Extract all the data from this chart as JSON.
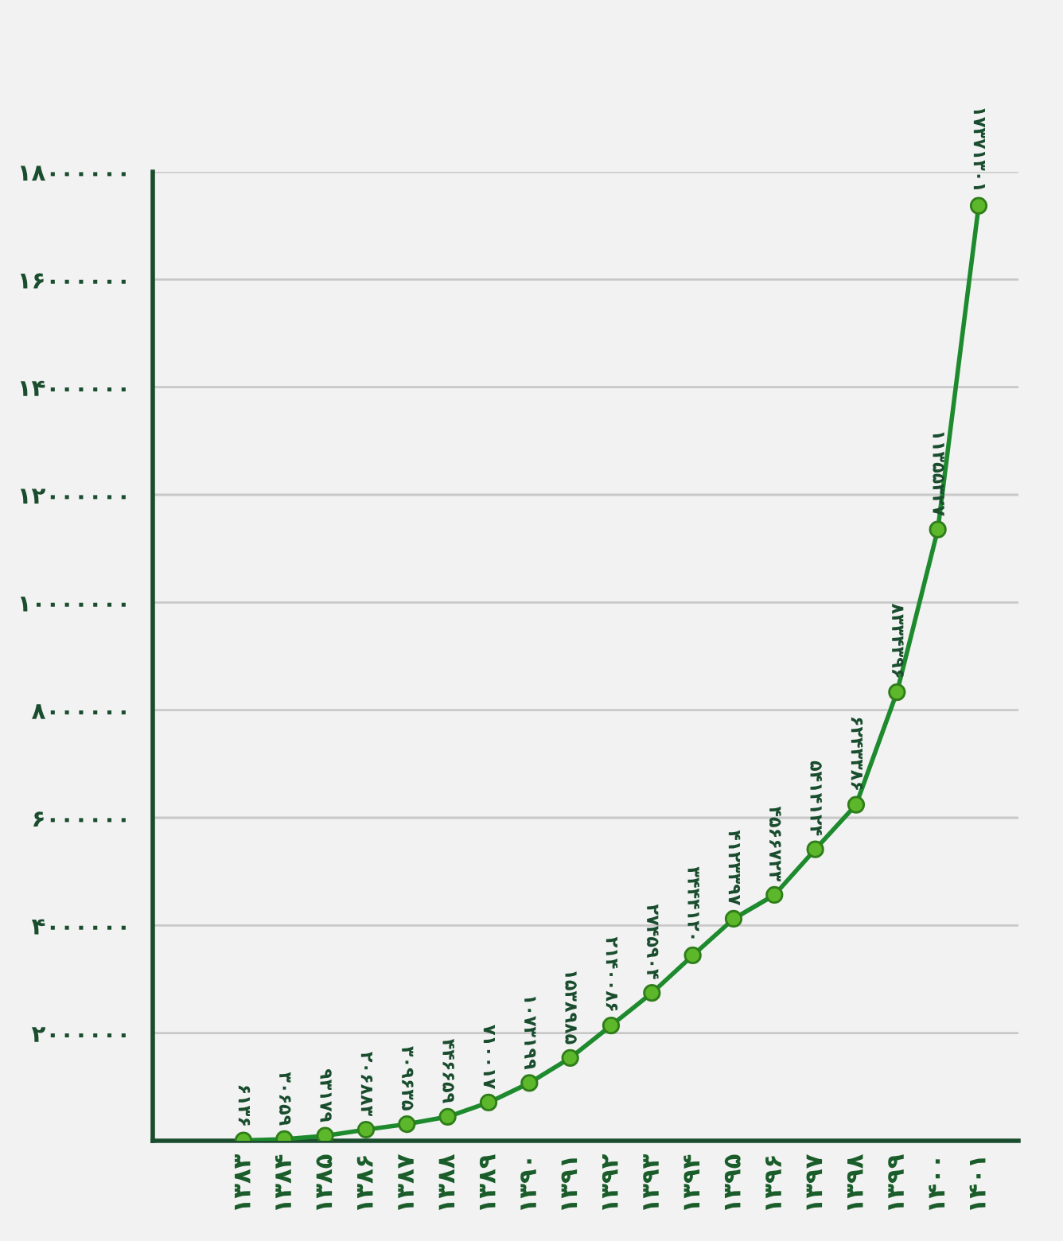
{
  "chart_data": {
    "type": "line",
    "categories": [
      "۱۳۸۳",
      "۱۳۸۴",
      "۱۳۸۵",
      "۱۳۸۶",
      "۱۳۸۷",
      "۱۳۸۸",
      "۱۳۸۹",
      "۱۳۹۰",
      "۱۳۹۱",
      "۱۳۹۲",
      "۱۳۹۳",
      "۱۳۹۴",
      "۱۳۹۵",
      "۱۳۹۶",
      "۱۳۹۷",
      "۱۳۹۸",
      "۱۳۹۹",
      "۱۴۰۰",
      "۱۴۰۱"
    ],
    "values": [
      6136,
      30659,
      93179,
      206883,
      309635,
      446659,
      710017,
      1073199,
      1538985,
      2140086,
      2745904,
      3444120,
      4123397,
      4566723,
      5414124,
      6243386,
      8334396,
      11355327,
      17371301
    ],
    "value_labels": [
      "۶۱۳۶",
      "۳۰۶۵۹",
      "۹۳۱۷۹",
      "۲۰۶۸۸۳",
      "۳۰۹۶۳۵",
      "۴۴۶۶۵۹",
      "۷۱۰۰۱۷",
      "۱۰۷۳۱۹۹",
      "۱۵۳۸۹۸۵",
      "۲۱۴۰۰۸۶",
      "۲۷۴۵۹۰۴",
      "۳۴۴۴۱۲۰",
      "۴۱۲۳۳۹۷",
      "۴۵۶۶۷۲۳",
      "۵۴۱۴۱۲۴",
      "۶۲۴۳۳۸۶",
      "۸۳۳۴۳۹۶",
      "۱۱۳۵۵۳۲۷",
      "۱۷۳۷۱۳۰۱"
    ],
    "color": "#1e8a2e",
    "marker": "circle",
    "line_style": "solid",
    "grid": "y",
    "ylim": [
      0,
      18000000
    ],
    "yticks": [
      {
        "value": 2000000,
        "label": "۲۰۰۰۰۰۰"
      },
      {
        "value": 4000000,
        "label": "۴۰۰۰۰۰۰"
      },
      {
        "value": 6000000,
        "label": "۶۰۰۰۰۰۰"
      },
      {
        "value": 8000000,
        "label": "۸۰۰۰۰۰۰"
      },
      {
        "value": 10000000,
        "label": "۱۰۰۰۰۰۰۰"
      },
      {
        "value": 12000000,
        "label": "۱۲۰۰۰۰۰۰"
      },
      {
        "value": 14000000,
        "label": "۱۴۰۰۰۰۰۰"
      },
      {
        "value": 16000000,
        "label": "۱۶۰۰۰۰۰۰"
      },
      {
        "value": 18000000,
        "label": "۱۸۰۰۰۰۰۰"
      }
    ]
  }
}
